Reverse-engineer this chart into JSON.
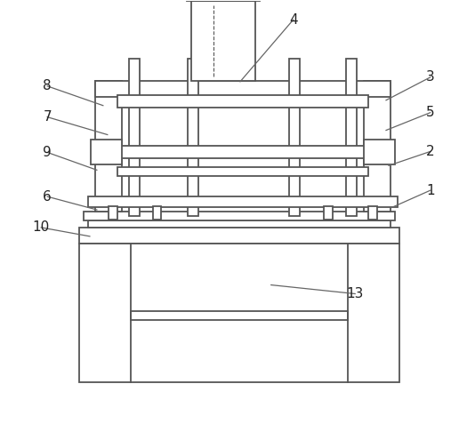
{
  "bg_color": "#ffffff",
  "line_color": "#555555",
  "line_width": 1.3,
  "label_fontsize": 11,
  "label_color": "#222222",
  "leader_color": "#666666"
}
